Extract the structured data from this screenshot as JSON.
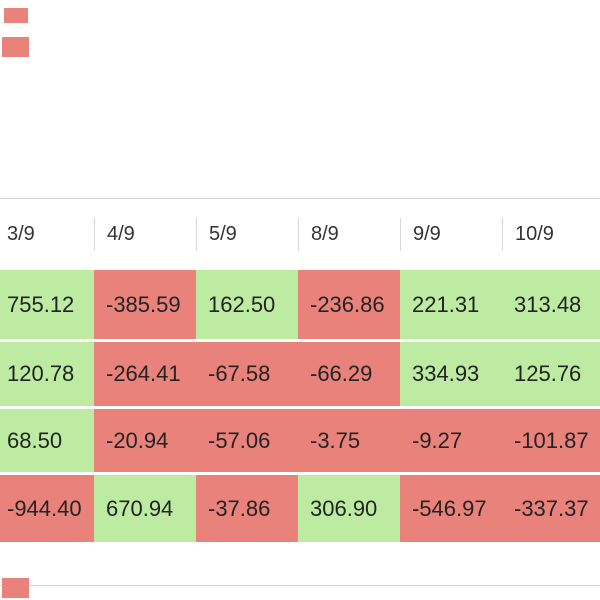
{
  "colors": {
    "positive": "#bdeba1",
    "negative": "#e9827a",
    "rule": "#d8d8d8",
    "header_text": "#333333",
    "cell_text": "#232323"
  },
  "table": {
    "header": {
      "columns": [
        "3/9",
        "4/9",
        "5/9",
        "8/9",
        "9/9",
        "10/9"
      ]
    },
    "rows": [
      {
        "cells": [
          {
            "value": "755.12",
            "tone": "positive"
          },
          {
            "value": "-385.59",
            "tone": "negative"
          },
          {
            "value": "162.50",
            "tone": "positive"
          },
          {
            "value": "-236.86",
            "tone": "negative"
          },
          {
            "value": "221.31",
            "tone": "positive"
          },
          {
            "value": "313.48",
            "tone": "positive"
          }
        ]
      },
      {
        "cells": [
          {
            "value": "120.78",
            "tone": "positive"
          },
          {
            "value": "-264.41",
            "tone": "negative"
          },
          {
            "value": "-67.58",
            "tone": "negative"
          },
          {
            "value": "-66.29",
            "tone": "negative"
          },
          {
            "value": "334.93",
            "tone": "positive"
          },
          {
            "value": "125.76",
            "tone": "positive"
          }
        ]
      },
      {
        "cells": [
          {
            "value": "68.50",
            "tone": "positive"
          },
          {
            "value": "-20.94",
            "tone": "negative"
          },
          {
            "value": "-57.06",
            "tone": "negative"
          },
          {
            "value": "-3.75",
            "tone": "negative"
          },
          {
            "value": "-9.27",
            "tone": "negative"
          },
          {
            "value": "-101.87",
            "tone": "negative"
          }
        ]
      },
      {
        "cells": [
          {
            "value": "-944.40",
            "tone": "negative"
          },
          {
            "value": "670.94",
            "tone": "positive"
          },
          {
            "value": "-37.86",
            "tone": "negative"
          },
          {
            "value": "306.90",
            "tone": "positive"
          },
          {
            "value": "-546.97",
            "tone": "negative"
          },
          {
            "value": "-337.37",
            "tone": "negative"
          }
        ]
      }
    ]
  }
}
